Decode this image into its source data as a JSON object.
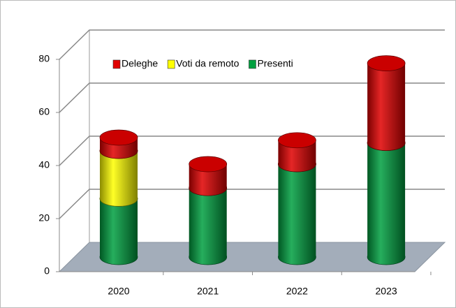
{
  "chart_data": {
    "type": "bar3d_stacked",
    "categories": [
      "2020",
      "2021",
      "2022",
      "2023"
    ],
    "series": [
      {
        "name": "Deleghe",
        "color": "#e00000",
        "values": [
          5,
          9,
          9,
          30
        ]
      },
      {
        "name": "Voti da remoto",
        "color": "#ffff00",
        "values": [
          18,
          0,
          0,
          0
        ]
      },
      {
        "name": "Presenti",
        "color": "#00a040",
        "values": [
          22,
          26,
          35,
          43
        ]
      }
    ],
    "ylim": [
      0,
      80
    ],
    "yticks": [
      0,
      20,
      40,
      60,
      80
    ],
    "grid": true,
    "legend": "top"
  }
}
